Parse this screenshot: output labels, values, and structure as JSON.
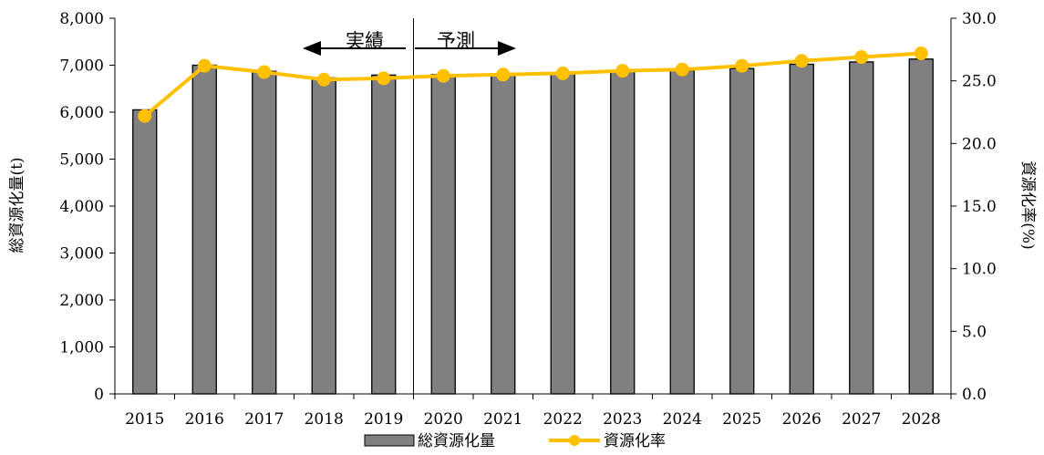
{
  "chart_data": {
    "type": "bar",
    "categories": [
      "2015",
      "2016",
      "2017",
      "2018",
      "2019",
      "2020",
      "2021",
      "2022",
      "2023",
      "2024",
      "2025",
      "2026",
      "2027",
      "2028"
    ],
    "series": [
      {
        "name": "総資源化量",
        "type": "bar",
        "axis": "left",
        "color": "#808080",
        "values": [
          6050,
          7000,
          6870,
          6730,
          6790,
          6800,
          6800,
          6830,
          6870,
          6890,
          6930,
          7020,
          7070,
          7130
        ]
      },
      {
        "name": "資源化率",
        "type": "line",
        "axis": "right",
        "color": "#ffc000",
        "values": [
          22.2,
          26.2,
          25.7,
          25.1,
          25.2,
          25.4,
          25.5,
          25.6,
          25.8,
          25.9,
          26.2,
          26.6,
          26.9,
          27.2
        ]
      }
    ],
    "ylabel": "総資源化量(t)",
    "y2label": "資源化率(%)",
    "ylim": [
      0,
      8000
    ],
    "y2lim": [
      0,
      30
    ],
    "yticks": [
      "0",
      "1,000",
      "2,000",
      "3,000",
      "4,000",
      "5,000",
      "6,000",
      "7,000",
      "8,000"
    ],
    "y2ticks": [
      "0.0",
      "5.0",
      "10.0",
      "15.0",
      "20.0",
      "25.0",
      "30.0"
    ],
    "annotations": {
      "actual": "実績",
      "forecast": "予測"
    },
    "grid": false,
    "legend_position": "bottom"
  },
  "colors": {
    "bar": "#808080",
    "line": "#ffc000",
    "axis": "#000000"
  }
}
